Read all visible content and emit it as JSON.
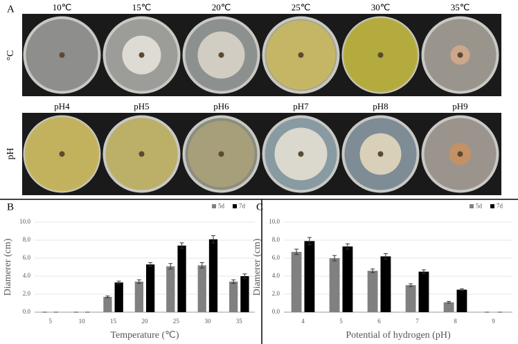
{
  "panel_a": {
    "label": "A",
    "row_labels": [
      "°C",
      "pH"
    ],
    "temperatures": [
      "10℃",
      "15℃",
      "20℃",
      "25℃",
      "30℃",
      "35℃"
    ],
    "ph": [
      "pH4",
      "pH5",
      "pH6",
      "pH7",
      "pH8",
      "pH9"
    ]
  },
  "chart_data": [
    {
      "type": "bar",
      "panel": "B",
      "x_label": "Temperature (℃)",
      "y_label": "Diamerer (cm)",
      "categories": [
        "5",
        "10",
        "15",
        "20",
        "25",
        "30",
        "35"
      ],
      "series": [
        {
          "name": "5d",
          "color": "#808080",
          "values": [
            0,
            0,
            1.7,
            3.4,
            5.1,
            5.2,
            3.4
          ],
          "errors": [
            0,
            0,
            0.1,
            0.2,
            0.3,
            0.3,
            0.2
          ]
        },
        {
          "name": "7d",
          "color": "#000000",
          "values": [
            0,
            0,
            3.3,
            5.3,
            7.4,
            8.1,
            4.0
          ],
          "errors": [
            0,
            0,
            0.15,
            0.2,
            0.3,
            0.4,
            0.25
          ]
        }
      ],
      "ylim": [
        0,
        10
      ],
      "yticks": [
        {
          "value": 0,
          "label": "0.0"
        },
        {
          "value": 2,
          "label": "2.0"
        },
        {
          "value": 4,
          "label": "4.0"
        },
        {
          "value": 6,
          "label": "6.0"
        },
        {
          "value": 8,
          "label": "8.0"
        },
        {
          "value": 10,
          "label": "10.0"
        }
      ],
      "legend": "top-right"
    },
    {
      "type": "bar",
      "panel": "C",
      "x_label": "Potential of hydrogen (pH)",
      "y_label": "Diamerer (cm)",
      "categories": [
        "4",
        "5",
        "6",
        "7",
        "8",
        "9"
      ],
      "series": [
        {
          "name": "5d",
          "color": "#808080",
          "values": [
            6.7,
            6.0,
            4.6,
            3.0,
            1.1,
            0
          ],
          "errors": [
            0.3,
            0.3,
            0.2,
            0.15,
            0.1,
            0
          ]
        },
        {
          "name": "7d",
          "color": "#000000",
          "values": [
            7.9,
            7.3,
            6.2,
            4.5,
            2.5,
            0
          ],
          "errors": [
            0.4,
            0.3,
            0.3,
            0.2,
            0.1,
            0
          ]
        }
      ],
      "ylim": [
        0,
        10
      ],
      "yticks": [
        {
          "value": 0,
          "label": "0.0"
        },
        {
          "value": 2,
          "label": "2.0"
        },
        {
          "value": 4,
          "label": "4.0"
        },
        {
          "value": 6,
          "label": "6.0"
        },
        {
          "value": 8,
          "label": "8.0"
        },
        {
          "value": 10,
          "label": "10.0"
        }
      ],
      "legend": "top-right"
    }
  ]
}
